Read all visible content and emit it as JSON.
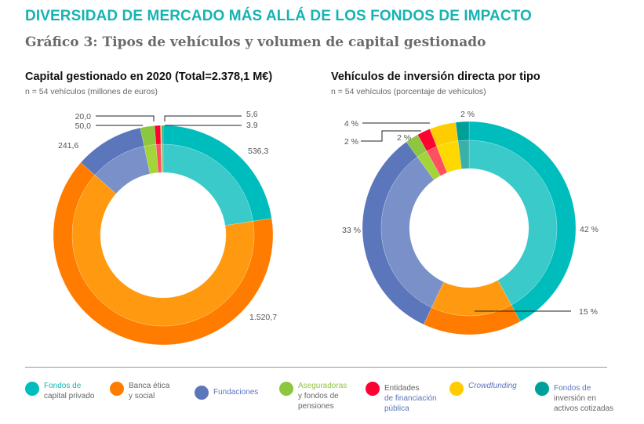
{
  "title": "DIVERSIDAD DE MERCADO MÁS ALLÁ DE LOS FONDOS DE IMPACTO",
  "subtitle": "Gráfico 3: Tipos de vehículos y volumen de capital gestionado",
  "colors": {
    "outer": [
      "#00bdbd",
      "#ff7c00",
      "#5b76bb",
      "#8dc63f",
      "#ff0033",
      "#ffcc00",
      "#00a09a"
    ],
    "inner": [
      "#3acaca",
      "#ff9a10",
      "#7a90c8",
      "#a3d43a",
      "#ff5060",
      "#ffd800",
      "#3ab0aa"
    ]
  },
  "chart_data": [
    {
      "type": "pie",
      "variant": "donut",
      "title": "Capital gestionado en 2020 (Total=2.378,1 M€)",
      "note": "n = 54 vehículos (millones de euros)",
      "categories": [
        "Fondos de capital privado",
        "Banca ética y social",
        "Fundaciones",
        "Aseguradoras y fondos de pensiones",
        "Entidades de financiación pública",
        "Crowdfunding",
        "Fondos de inversión en activos cotizadas"
      ],
      "values": [
        536.3,
        1520.7,
        241.6,
        50.0,
        20.0,
        5.6,
        3.9
      ],
      "labels": [
        "536,3",
        "1.520,7",
        "241,6",
        "50,0",
        "20,0",
        "5,6",
        "3.9"
      ]
    },
    {
      "type": "pie",
      "variant": "donut",
      "title": "Vehículos de inversión directa por tipo",
      "note": "n = 54 vehículos (porcentaje de vehículos)",
      "categories": [
        "Fondos de capital privado",
        "Banca ética y social",
        "Fundaciones",
        "Aseguradoras y fondos de pensiones",
        "Entidades de financiación pública",
        "Crowdfunding",
        "Fondos de inversión en activos cotizadas"
      ],
      "values": [
        42,
        15,
        33,
        2,
        2,
        4,
        2
      ],
      "labels": [
        "42 %",
        "15 %",
        "33 %",
        "2 %",
        "2 %",
        "4 %",
        "2 %"
      ]
    }
  ],
  "legend": [
    {
      "a": "Fondos de",
      "b": "capital privado"
    },
    {
      "a": "Banca ética",
      "b": "y social"
    },
    {
      "a": "Fundaciones",
      "b": ""
    },
    {
      "a": "Aseguradoras",
      "b": "y fondos de pensiones"
    },
    {
      "a": "Entidades",
      "b": "de financiación pública"
    },
    {
      "a": "Crowdfunding",
      "b": ""
    },
    {
      "a": "Fondos de",
      "b": "inversión en activos cotizadas"
    }
  ]
}
